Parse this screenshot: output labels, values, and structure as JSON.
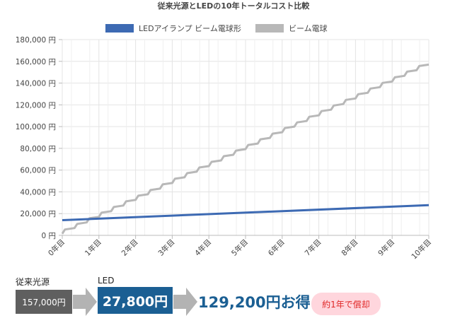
{
  "chart_data": {
    "type": "line",
    "title": "従来光源とLEDの10年トータルコスト比較",
    "categories": [
      "0年目",
      "1年目",
      "2年目",
      "3年目",
      "4年目",
      "5年目",
      "6年目",
      "7年目",
      "8年目",
      "9年目",
      "10年目"
    ],
    "ylim": [
      0,
      180000
    ],
    "yticks": [
      0,
      20000,
      40000,
      60000,
      80000,
      100000,
      120000,
      140000,
      160000,
      180000
    ],
    "ytick_labels": [
      "0 円",
      "20,000 円",
      "40,000 円",
      "60,000 円",
      "80,000 円",
      "100,000 円",
      "120,000 円",
      "140,000 円",
      "160,000 円",
      "180,000 円"
    ],
    "series": [
      {
        "name": "LEDアイランプ ビーム電球形",
        "color": "#3d6ab3",
        "x": [
          0,
          10
        ],
        "y": [
          14000,
          27800
        ]
      },
      {
        "name": "ビーム電球",
        "color": "#b8b8b8",
        "stepped": true,
        "start_value": 1500,
        "end_value": 157000,
        "replacement_every_year": 3,
        "replacement_cost": 3500
      }
    ],
    "grid": true,
    "legend_position": "top"
  },
  "summary": {
    "conventional_label": "従来光源",
    "conventional_value": "157,000円",
    "led_label": "LED",
    "led_value": "27,800円",
    "savings_text": "129,200円お得",
    "payback_badge": "約1年で償却",
    "colors": {
      "conventional": "#5f5f5f",
      "led": "#1b5f93",
      "arrow": "#b3b3b3",
      "badge_bg": "#ffd6dd",
      "badge_text": "#e02828"
    }
  }
}
